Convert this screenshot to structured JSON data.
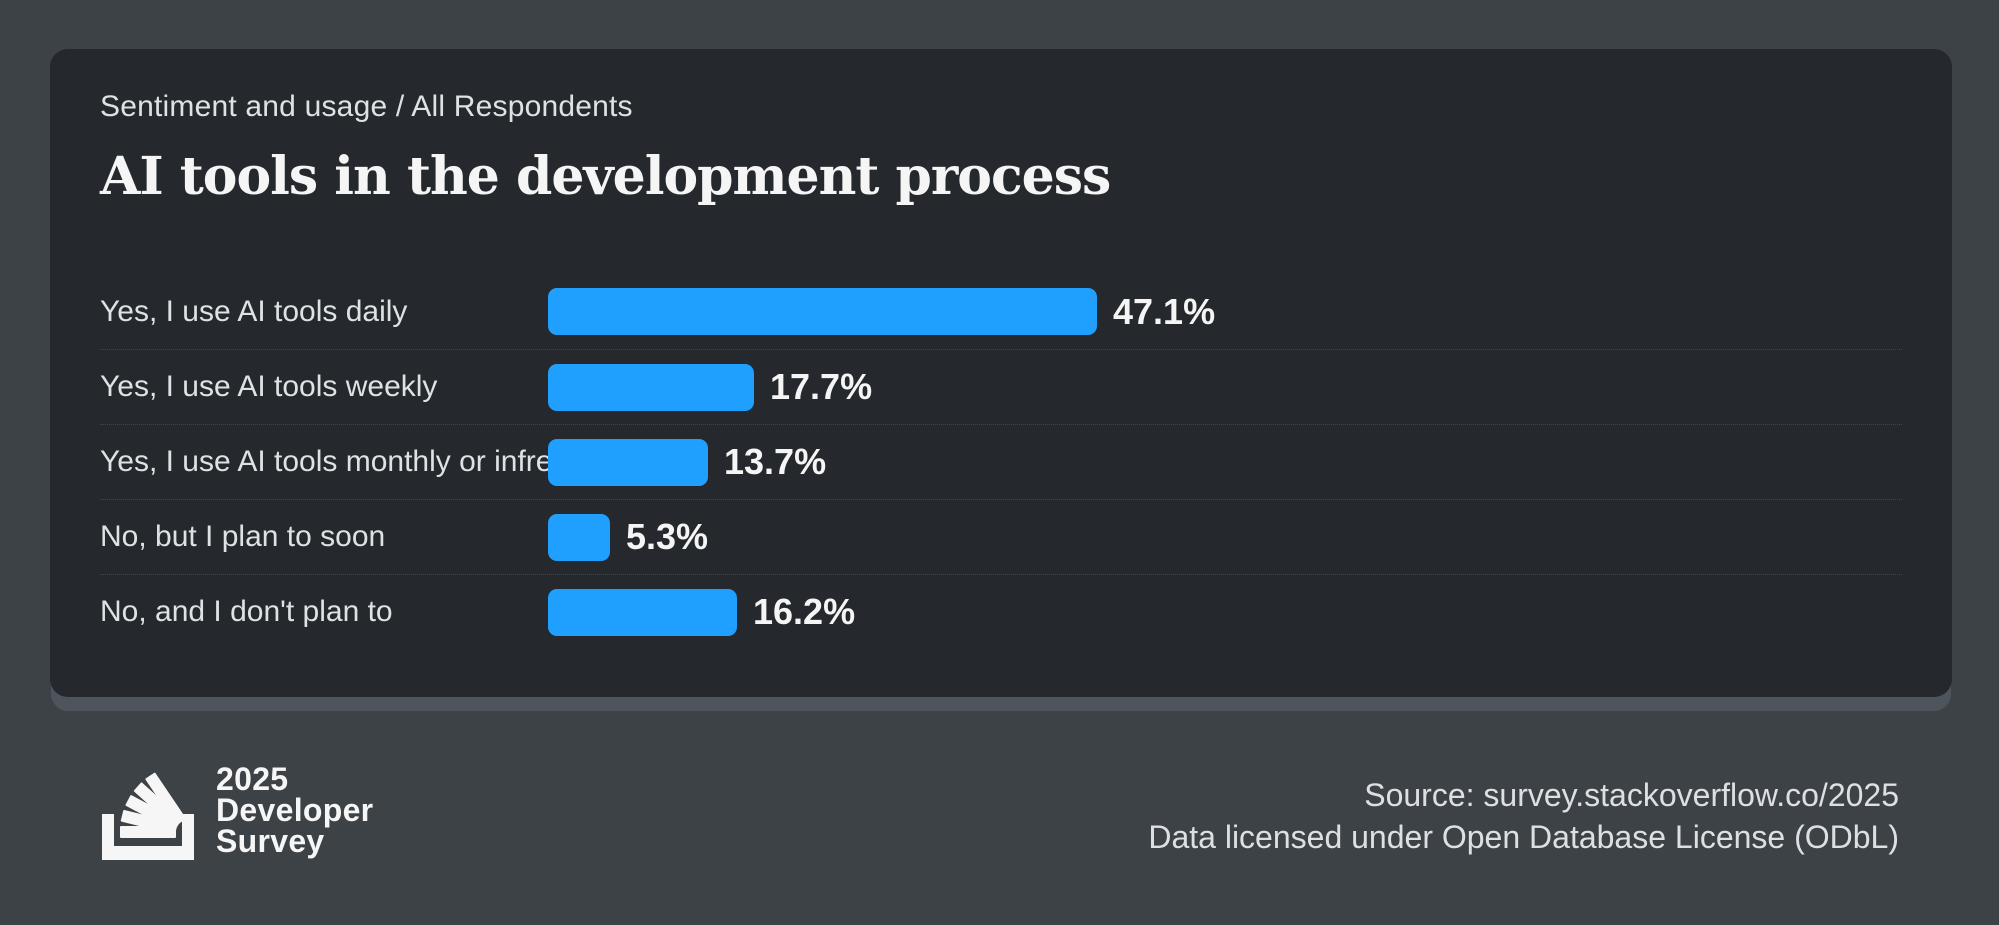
{
  "colors": {
    "background": "#3d4247",
    "card": "#25282c",
    "card_shadow": "#4e545b",
    "bar": "#1fa0ff",
    "title_text": "#f4f5f4",
    "label_text": "#dfe2e4",
    "separator": "#41464b"
  },
  "header": {
    "breadcrumb": "Sentiment and usage / All Respondents",
    "title": "AI tools in the development process"
  },
  "chart_data": {
    "type": "bar",
    "orientation": "horizontal",
    "title": "AI tools in the development process",
    "categories": [
      "Yes, I use AI tools daily",
      "Yes, I use AI tools weekly",
      "Yes, I use AI tools monthly or infrequently",
      "No, but I plan to soon",
      "No, and I don't plan to"
    ],
    "values": [
      47.1,
      17.7,
      13.7,
      5.3,
      16.2
    ],
    "value_labels": [
      "47.1%",
      "17.7%",
      "13.7%",
      "5.3%",
      "16.2%"
    ],
    "unit": "percent",
    "xlim": [
      0,
      100
    ],
    "grid": false,
    "legend": false,
    "value_label_position": "right-of-bar"
  },
  "footer": {
    "logo": {
      "icon": "stackoverflow-logo",
      "line1": "2025",
      "line2": "Developer",
      "line3": "Survey"
    },
    "source_line1": "Source: survey.stackoverflow.co/2025",
    "source_line2": "Data licensed under Open Database License (ODbL)"
  }
}
